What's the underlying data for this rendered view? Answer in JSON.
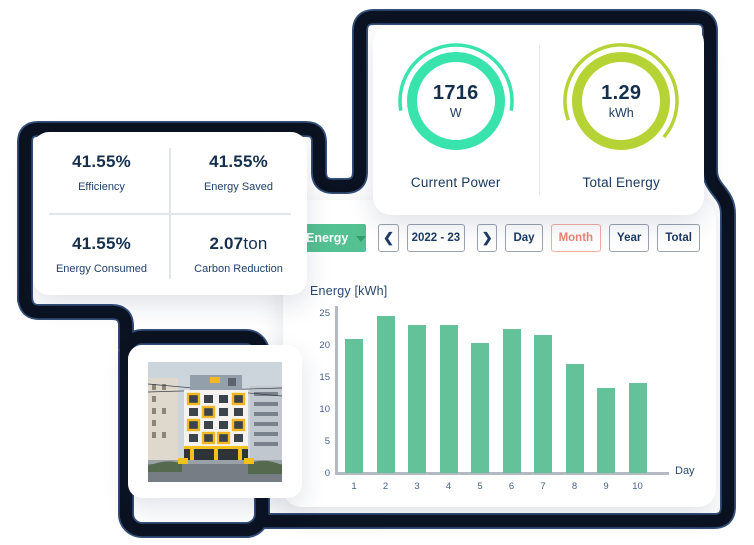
{
  "colors": {
    "navy_text": "#1c3b62",
    "value_navy": "#15304f",
    "pipe_dark": "#0b1322",
    "pipe_fringe": "#1f3d6b",
    "mint_ring": "#38e3ac",
    "lime_ring": "#b6d335",
    "bar_green": "#63c29a",
    "dropdown_green": "#54c192",
    "active_salmon": "#ee837a"
  },
  "gauge_card": {
    "gauges": [
      {
        "value": "1716",
        "unit": "W",
        "label": "Current Power",
        "ring_color": "#38e3ac"
      },
      {
        "value": "1.29",
        "unit": "kWh",
        "label": "Total Energy",
        "ring_color": "#b6d335"
      }
    ]
  },
  "stats_card": {
    "stats": [
      {
        "value": "41.55%",
        "suffix": "",
        "label": "Efficiency"
      },
      {
        "value": "41.55%",
        "suffix": "",
        "label": "Energy Saved"
      },
      {
        "value": "41.55%",
        "suffix": "",
        "label": "Energy Consumed"
      },
      {
        "value": "2.07",
        "suffix": "ton",
        "label": "Carbon Reduction"
      }
    ]
  },
  "chart_panel": {
    "toolbar": {
      "metric_label": "Energy",
      "prev_icon": "❮",
      "next_icon": "❯",
      "period_label": "2022 - 23",
      "range_buttons": [
        {
          "label": "Day",
          "active": false
        },
        {
          "label": "Month",
          "active": true
        },
        {
          "label": "Year",
          "active": false
        },
        {
          "label": "Total",
          "active": false
        }
      ]
    }
  },
  "chart_data": {
    "type": "bar",
    "title": "Energy [kWh]",
    "xlabel": "Day",
    "ylabel": "Energy [kWh]",
    "categories": [
      "1",
      "2",
      "3",
      "4",
      "5",
      "6",
      "7",
      "8",
      "9",
      "10"
    ],
    "values": [
      21,
      24.6,
      23.2,
      23.2,
      20.3,
      22.5,
      21.6,
      17.1,
      13.3,
      14.1
    ],
    "ylim": [
      0,
      25
    ],
    "yticks": [
      0,
      5,
      10,
      15,
      20,
      25
    ],
    "bar_color": "#63c29a",
    "grid": false,
    "legend": false
  }
}
